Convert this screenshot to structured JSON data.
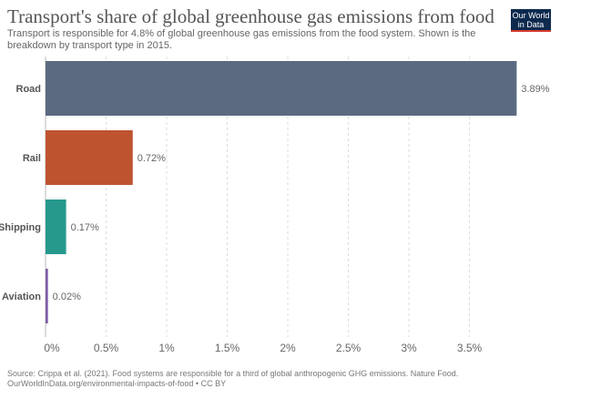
{
  "header": {
    "title": "Transport's share of global greenhouse gas emissions from food",
    "subtitle": "Transport is responsible for 4.8% of global greenhouse gas emissions from the food system. Shown is the breakdown by transport type in 2015.",
    "logo_line1": "Our World",
    "logo_line2": "in Data"
  },
  "chart_data": {
    "type": "bar",
    "orientation": "horizontal",
    "categories": [
      "Road",
      "Rail",
      "Shipping",
      "Aviation"
    ],
    "values": [
      3.89,
      0.72,
      0.17,
      0.02
    ],
    "value_labels": [
      "3.89%",
      "0.72%",
      "0.17%",
      "0.02%"
    ],
    "colors": [
      "#5b6a80",
      "#be5330",
      "#26998c",
      "#7f5ba6"
    ],
    "xlim": [
      0,
      3.9
    ],
    "xticks": [
      0,
      0.5,
      1,
      1.5,
      2,
      2.5,
      3,
      3.5
    ],
    "xtick_labels": [
      "0%",
      "0.5%",
      "1%",
      "1.5%",
      "2%",
      "2.5%",
      "3%",
      "3.5%"
    ],
    "grid": true
  },
  "footer": {
    "source": "Source: Crippa et al. (2021). Food systems are responsible for a third of global anthropogenic GHG emissions. Nature Food.",
    "url": "OurWorldInData.org/environmental-impacts-of-food • CC BY"
  }
}
